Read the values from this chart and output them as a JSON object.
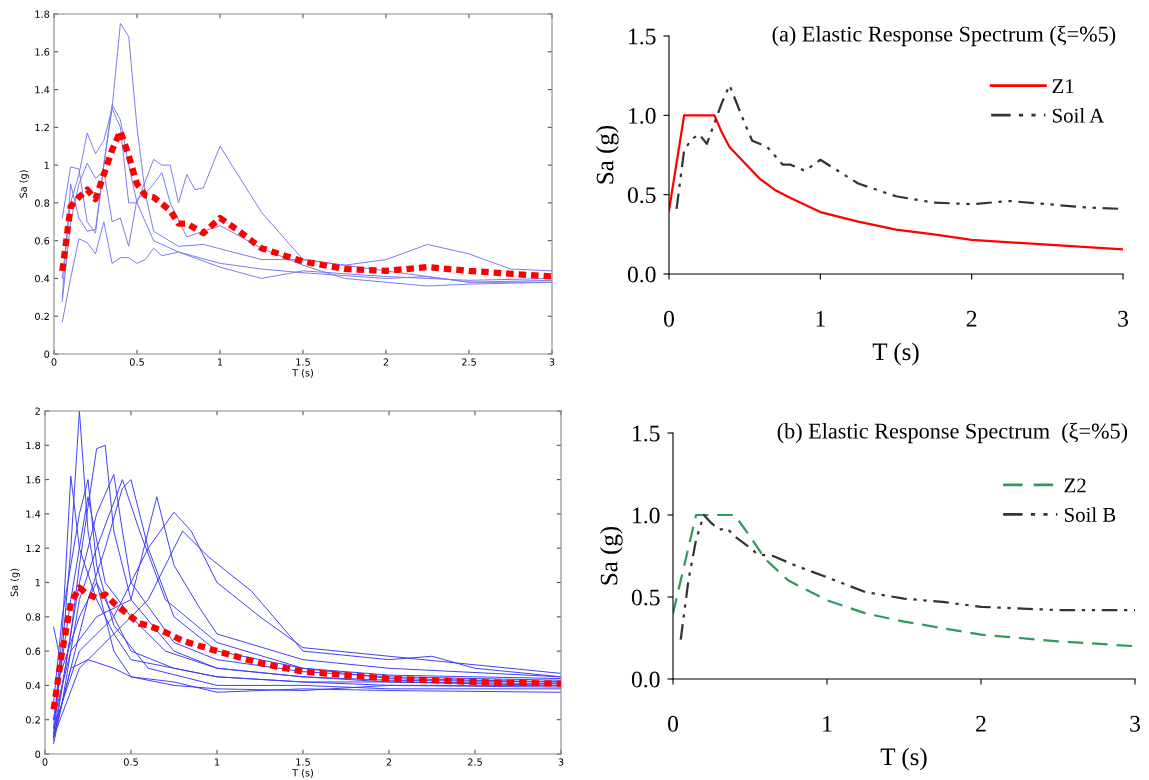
{
  "chart_data": [
    {
      "type": "line",
      "xlabel": "T (s)",
      "ylabel": "Sa (g)",
      "xlim": [
        0,
        3
      ],
      "ylim": [
        0,
        1.8
      ],
      "xticks": [
        0,
        0.5,
        1,
        1.5,
        2,
        2.5,
        3
      ],
      "yticks": [
        0,
        0.2,
        0.4,
        0.6,
        0.8,
        1,
        1.2,
        1.4,
        1.6,
        1.8
      ],
      "grid": false,
      "legend": false,
      "series": [
        {
          "color": "#7878f0",
          "line_style": "solid",
          "x": [
            0.05,
            0.1,
            0.15,
            0.2,
            0.25,
            0.3,
            0.35,
            0.4,
            0.45,
            0.5,
            0.55,
            0.6,
            0.75,
            0.9,
            1.25,
            1.5,
            2.0,
            2.5,
            3.0
          ],
          "values": [
            0.3,
            0.9,
            0.72,
            0.65,
            0.66,
            1.0,
            1.3,
            1.75,
            1.68,
            1.2,
            0.85,
            0.65,
            0.57,
            0.58,
            0.5,
            0.5,
            0.44,
            0.38,
            0.38
          ]
        },
        {
          "color": "#7878f0",
          "line_style": "solid",
          "x": [
            0.05,
            0.1,
            0.15,
            0.2,
            0.25,
            0.3,
            0.35,
            0.4,
            0.45,
            0.5,
            0.6,
            0.75,
            1.0,
            1.25,
            1.5,
            2.0,
            2.25,
            2.5,
            3.0
          ],
          "values": [
            0.72,
            0.99,
            0.98,
            0.7,
            0.64,
            1.0,
            1.32,
            1.24,
            1.0,
            0.8,
            0.6,
            0.54,
            0.48,
            0.45,
            0.43,
            0.4,
            0.41,
            0.38,
            0.39
          ]
        },
        {
          "color": "#7878f0",
          "line_style": "solid",
          "x": [
            0.05,
            0.1,
            0.15,
            0.2,
            0.25,
            0.3,
            0.35,
            0.4,
            0.45,
            0.5,
            0.6,
            0.65,
            0.7,
            0.75,
            0.8,
            0.85,
            0.9,
            1.0,
            1.25,
            1.5,
            1.75,
            2.0,
            2.25,
            2.5,
            2.75,
            3.0
          ],
          "values": [
            0.4,
            0.8,
            0.95,
            1.17,
            1.06,
            1.13,
            1.3,
            1.2,
            0.8,
            0.8,
            1.03,
            1.0,
            1.0,
            0.8,
            0.95,
            0.87,
            0.88,
            1.1,
            0.75,
            0.5,
            0.47,
            0.5,
            0.58,
            0.53,
            0.45,
            0.44
          ]
        },
        {
          "color": "#7878f0",
          "line_style": "solid",
          "x": [
            0.05,
            0.1,
            0.15,
            0.2,
            0.25,
            0.3,
            0.35,
            0.4,
            0.45,
            0.5,
            0.55,
            0.6,
            0.65,
            0.7,
            0.8,
            1.0,
            1.25,
            1.5,
            1.75,
            2.0,
            2.25,
            2.5,
            3.0
          ],
          "values": [
            0.28,
            0.7,
            0.9,
            1.01,
            0.93,
            0.97,
            0.7,
            0.72,
            0.57,
            0.82,
            0.85,
            0.9,
            0.96,
            0.8,
            0.62,
            0.68,
            0.56,
            0.47,
            0.4,
            0.38,
            0.36,
            0.37,
            0.38
          ]
        },
        {
          "color": "#7878f0",
          "line_style": "solid",
          "x": [
            0.05,
            0.1,
            0.15,
            0.2,
            0.25,
            0.3,
            0.35,
            0.4,
            0.45,
            0.5,
            0.55,
            0.6,
            0.65,
            0.75,
            1.0,
            1.25,
            1.5,
            2.0,
            2.5,
            3.0
          ],
          "values": [
            0.17,
            0.4,
            0.61,
            0.59,
            0.53,
            0.7,
            0.48,
            0.51,
            0.51,
            0.48,
            0.5,
            0.56,
            0.52,
            0.54,
            0.46,
            0.4,
            0.44,
            0.41,
            0.39,
            0.4
          ]
        },
        {
          "color": "#ff0000",
          "line_style": "dotted",
          "x": [
            0.05,
            0.1,
            0.15,
            0.2,
            0.25,
            0.3,
            0.35,
            0.4,
            0.45,
            0.5,
            0.55,
            0.6,
            0.7,
            0.75,
            0.8,
            0.9,
            1.0,
            1.1,
            1.25,
            1.5,
            1.75,
            2.0,
            2.25,
            2.5,
            3.0
          ],
          "values": [
            0.44,
            0.78,
            0.83,
            0.87,
            0.82,
            0.95,
            1.08,
            1.18,
            1.05,
            0.9,
            0.84,
            0.83,
            0.76,
            0.69,
            0.69,
            0.64,
            0.72,
            0.66,
            0.56,
            0.49,
            0.45,
            0.44,
            0.46,
            0.44,
            0.41
          ]
        }
      ]
    },
    {
      "type": "line",
      "title": "(a) Elastic Response Spectrum (ξ=%5)",
      "xlabel": "T (s)",
      "ylabel": "Sa (g)",
      "xlim": [
        0,
        3
      ],
      "ylim": [
        0,
        1.5
      ],
      "xticks": [
        0,
        1,
        2,
        3
      ],
      "yticks": [
        {
          "value": 0,
          "label": "0.0"
        },
        {
          "value": 0.5,
          "label": "0.5"
        },
        {
          "value": 1,
          "label": "1.0"
        },
        {
          "value": 1.5,
          "label": "1.5"
        }
      ],
      "grid": false,
      "legend": "right",
      "series": [
        {
          "name": "Z1",
          "color": "#ff0000",
          "line_style": "solid",
          "x": [
            0,
            0.1,
            0.3,
            0.35,
            0.4,
            0.5,
            0.6,
            0.7,
            0.8,
            1.0,
            1.25,
            1.5,
            1.75,
            2.0,
            2.5,
            3.0
          ],
          "values": [
            0.4,
            1.0,
            1.0,
            0.89,
            0.8,
            0.7,
            0.6,
            0.53,
            0.48,
            0.39,
            0.33,
            0.28,
            0.25,
            0.215,
            0.185,
            0.155
          ]
        },
        {
          "name": "Soil A",
          "color": "#333333",
          "line_style": "dashdot",
          "x": [
            0.05,
            0.1,
            0.15,
            0.2,
            0.25,
            0.3,
            0.35,
            0.4,
            0.45,
            0.5,
            0.55,
            0.65,
            0.75,
            0.8,
            0.9,
            1.0,
            1.25,
            1.5,
            1.75,
            2.0,
            2.25,
            2.5,
            2.75,
            3.0
          ],
          "values": [
            0.41,
            0.78,
            0.85,
            0.88,
            0.82,
            0.95,
            1.08,
            1.19,
            1.07,
            0.95,
            0.84,
            0.8,
            0.69,
            0.69,
            0.65,
            0.72,
            0.57,
            0.49,
            0.45,
            0.44,
            0.46,
            0.44,
            0.42,
            0.41
          ]
        }
      ]
    },
    {
      "type": "line",
      "xlabel": "T (s)",
      "ylabel": "Sa (g)",
      "xlim": [
        0,
        3
      ],
      "ylim": [
        0,
        2
      ],
      "xticks": [
        0,
        0.5,
        1,
        1.5,
        2,
        2.5,
        3
      ],
      "yticks": [
        0,
        0.2,
        0.4,
        0.6,
        0.8,
        1,
        1.2,
        1.4,
        1.6,
        1.8,
        2
      ],
      "grid": false,
      "legend": false,
      "series": [
        {
          "color": "#3c3cf5",
          "line_style": "solid",
          "x": [
            0.05,
            0.1,
            0.15,
            0.2,
            0.25,
            0.3,
            0.4,
            0.5,
            0.75,
            1.0,
            1.5,
            2.0,
            3.0
          ],
          "values": [
            0.1,
            0.6,
            1.2,
            2.0,
            1.3,
            1.0,
            0.8,
            0.6,
            0.5,
            0.45,
            0.42,
            0.42,
            0.4
          ]
        },
        {
          "color": "#3c3cf5",
          "line_style": "solid",
          "x": [
            0.05,
            0.1,
            0.15,
            0.2,
            0.3,
            0.4,
            0.5,
            1.0,
            1.5,
            2.0,
            3.0
          ],
          "values": [
            0.15,
            0.7,
            1.62,
            1.2,
            0.9,
            0.7,
            0.55,
            0.45,
            0.42,
            0.4,
            0.4
          ]
        },
        {
          "color": "#3c3cf5",
          "line_style": "solid",
          "x": [
            0.05,
            0.15,
            0.2,
            0.3,
            0.35,
            0.4,
            0.5,
            0.75,
            1.0,
            1.5,
            2.0,
            3.0
          ],
          "values": [
            0.08,
            0.7,
            1.1,
            1.78,
            1.8,
            1.3,
            0.9,
            0.6,
            0.5,
            0.45,
            0.43,
            0.42
          ]
        },
        {
          "color": "#3c3cf5",
          "line_style": "solid",
          "x": [
            0.05,
            0.1,
            0.2,
            0.3,
            0.4,
            0.45,
            0.5,
            0.75,
            1.0,
            1.5,
            2.0,
            3.0
          ],
          "values": [
            0.12,
            0.4,
            1.0,
            1.4,
            1.63,
            1.3,
            1.0,
            0.65,
            0.55,
            0.48,
            0.45,
            0.43
          ]
        },
        {
          "color": "#3c3cf5",
          "line_style": "solid",
          "x": [
            0.05,
            0.15,
            0.25,
            0.35,
            0.45,
            0.5,
            0.6,
            0.75,
            1.0,
            1.5,
            2.0,
            3.0
          ],
          "values": [
            0.1,
            0.5,
            0.9,
            1.2,
            1.55,
            1.6,
            1.2,
            0.8,
            0.6,
            0.5,
            0.46,
            0.44
          ]
        },
        {
          "color": "#3c3cf5",
          "line_style": "solid",
          "x": [
            0.05,
            0.15,
            0.3,
            0.5,
            0.65,
            0.75,
            0.9,
            1.0,
            1.5,
            2.0,
            3.0
          ],
          "values": [
            0.2,
            0.6,
            0.8,
            0.9,
            1.5,
            1.1,
            0.85,
            0.7,
            0.55,
            0.5,
            0.45
          ]
        },
        {
          "color": "#3c3cf5",
          "line_style": "solid",
          "x": [
            0.05,
            0.2,
            0.4,
            0.6,
            0.75,
            0.85,
            1.0,
            1.25,
            1.5,
            2.0,
            2.5,
            3.0
          ],
          "values": [
            0.15,
            0.6,
            0.8,
            1.2,
            1.41,
            1.3,
            1.0,
            0.8,
            0.62,
            0.57,
            0.52,
            0.47
          ]
        },
        {
          "color": "#3c3cf5",
          "line_style": "solid",
          "x": [
            0.05,
            0.2,
            0.4,
            0.6,
            0.8,
            0.95,
            1.2,
            1.5,
            2.0,
            2.25,
            2.5,
            3.0
          ],
          "values": [
            0.1,
            0.5,
            0.7,
            0.9,
            1.3,
            1.15,
            0.95,
            0.6,
            0.55,
            0.57,
            0.5,
            0.45
          ]
        },
        {
          "color": "#3c3cf5",
          "line_style": "solid",
          "x": [
            0.05,
            0.1,
            0.2,
            0.25,
            0.3,
            0.4,
            0.6,
            1.0,
            1.5,
            2.0,
            3.0
          ],
          "values": [
            0.3,
            0.8,
            1.4,
            1.6,
            1.1,
            0.75,
            0.5,
            0.4,
            0.4,
            0.38,
            0.38
          ]
        },
        {
          "color": "#3c3cf5",
          "line_style": "solid",
          "x": [
            0.05,
            0.1,
            0.2,
            0.3,
            0.4,
            0.5,
            0.75,
            1.0,
            1.5,
            2.0,
            3.0
          ],
          "values": [
            0.74,
            0.5,
            0.8,
            1.0,
            0.6,
            0.45,
            0.42,
            0.36,
            0.38,
            0.37,
            0.36
          ]
        },
        {
          "color": "#3c3cf5",
          "line_style": "solid",
          "x": [
            0.05,
            0.1,
            0.2,
            0.3,
            0.45,
            0.55,
            0.7,
            1.0,
            1.5,
            2.0,
            3.0
          ],
          "values": [
            0.06,
            0.3,
            0.9,
            1.2,
            1.6,
            1.3,
            0.9,
            0.65,
            0.5,
            0.44,
            0.42
          ]
        },
        {
          "color": "#3c3cf5",
          "line_style": "solid",
          "x": [
            0.05,
            0.15,
            0.25,
            0.4,
            0.5,
            0.75,
            1.0,
            1.5,
            2.0,
            3.0
          ],
          "values": [
            0.1,
            0.5,
            0.55,
            0.5,
            0.45,
            0.4,
            0.38,
            0.37,
            0.4,
            0.39
          ]
        },
        {
          "color": "#3c3cf5",
          "line_style": "solid",
          "x": [
            0.05,
            0.15,
            0.25,
            0.35,
            0.5,
            0.7,
            1.0,
            1.5,
            2.0,
            3.0
          ],
          "values": [
            0.2,
            0.9,
            1.5,
            1.0,
            0.8,
            0.6,
            0.5,
            0.45,
            0.42,
            0.41
          ]
        },
        {
          "color": "#ff0000",
          "line_style": "dotted",
          "x": [
            0.05,
            0.1,
            0.15,
            0.2,
            0.25,
            0.3,
            0.35,
            0.4,
            0.5,
            0.55,
            0.6,
            0.7,
            0.8,
            1.0,
            1.25,
            1.5,
            1.75,
            2.0,
            2.5,
            3.0
          ],
          "values": [
            0.26,
            0.6,
            0.88,
            0.97,
            0.93,
            0.91,
            0.93,
            0.88,
            0.8,
            0.76,
            0.75,
            0.71,
            0.66,
            0.6,
            0.53,
            0.48,
            0.46,
            0.44,
            0.42,
            0.41
          ]
        }
      ]
    },
    {
      "type": "line",
      "title": "(b) Elastic Response Spectrum  (ξ=%5)",
      "xlabel": "T (s)",
      "ylabel": "Sa (g)",
      "xlim": [
        0,
        3
      ],
      "ylim": [
        0,
        1.5
      ],
      "xticks": [
        0,
        1,
        2,
        3
      ],
      "yticks": [
        {
          "value": 0,
          "label": "0.0"
        },
        {
          "value": 0.5,
          "label": "0.5"
        },
        {
          "value": 1,
          "label": "1.0"
        },
        {
          "value": 1.5,
          "label": "1.5"
        }
      ],
      "grid": false,
      "legend": "right",
      "series": [
        {
          "name": "Z2",
          "color": "#2e9a5e",
          "line_style": "dashed",
          "x": [
            0,
            0.15,
            0.4,
            0.5,
            0.6,
            0.75,
            1.0,
            1.25,
            1.5,
            1.75,
            2.0,
            2.25,
            2.5,
            3.0
          ],
          "values": [
            0.4,
            1.0,
            1.0,
            0.87,
            0.73,
            0.6,
            0.48,
            0.4,
            0.35,
            0.31,
            0.27,
            0.25,
            0.23,
            0.2
          ]
        },
        {
          "name": "Soil B",
          "color": "#333333",
          "line_style": "dashdot",
          "x": [
            0.05,
            0.1,
            0.15,
            0.2,
            0.25,
            0.3,
            0.35,
            0.4,
            0.5,
            0.55,
            0.65,
            0.8,
            1.0,
            1.25,
            1.5,
            1.75,
            2.0,
            2.5,
            3.0
          ],
          "values": [
            0.24,
            0.6,
            0.85,
            1.0,
            0.95,
            0.91,
            0.92,
            0.87,
            0.8,
            0.76,
            0.75,
            0.69,
            0.62,
            0.53,
            0.49,
            0.47,
            0.44,
            0.42,
            0.42
          ]
        }
      ]
    }
  ]
}
